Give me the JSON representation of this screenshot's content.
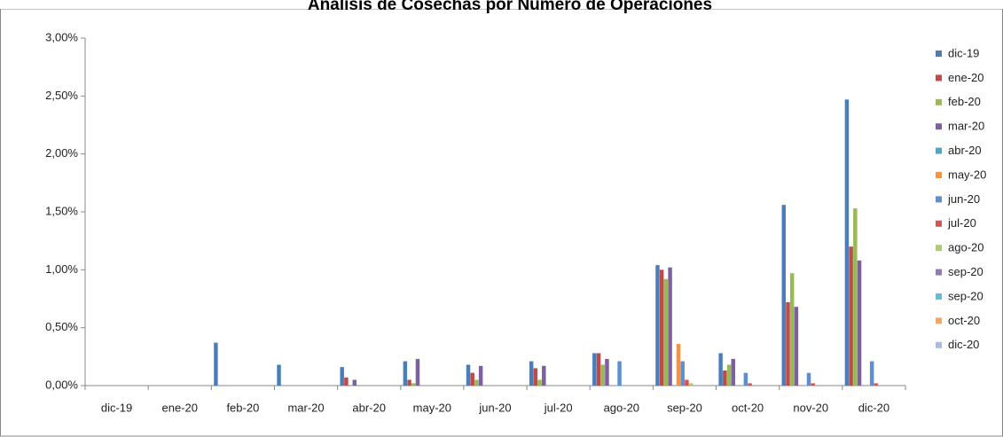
{
  "chart_data": {
    "type": "bar",
    "title": "Análisis de Cosechas por Número de Operaciones",
    "categories": [
      "dic-19",
      "ene-20",
      "feb-20",
      "mar-20",
      "abr-20",
      "may-20",
      "jun-20",
      "jul-20",
      "ago-20",
      "sep-20",
      "oct-20",
      "nov-20",
      "dic-20"
    ],
    "series": [
      {
        "name": "dic-19",
        "color": "#4A7EBB",
        "values": [
          null,
          null,
          0.37,
          0.18,
          0.16,
          0.21,
          0.18,
          0.21,
          0.28,
          1.04,
          0.28,
          1.56,
          2.47
        ]
      },
      {
        "name": "ene-20",
        "color": "#BE4B48",
        "values": [
          null,
          null,
          null,
          null,
          0.07,
          0.05,
          0.11,
          0.15,
          0.28,
          1.0,
          0.13,
          0.72,
          1.2
        ]
      },
      {
        "name": "feb-20",
        "color": "#98B954",
        "values": [
          null,
          null,
          null,
          null,
          null,
          0.02,
          0.05,
          0.05,
          0.18,
          0.92,
          0.18,
          0.97,
          1.53
        ]
      },
      {
        "name": "mar-20",
        "color": "#7D60A0",
        "values": [
          null,
          null,
          null,
          null,
          0.05,
          0.23,
          0.17,
          0.17,
          0.23,
          1.02,
          0.23,
          0.68,
          1.08
        ]
      },
      {
        "name": "abr-20",
        "color": "#46AAC5",
        "values": [
          null,
          null,
          null,
          null,
          null,
          null,
          null,
          null,
          null,
          null,
          null,
          null,
          null
        ]
      },
      {
        "name": "may-20",
        "color": "#F69240",
        "values": [
          null,
          null,
          null,
          null,
          null,
          null,
          null,
          null,
          null,
          0.36,
          null,
          null,
          null
        ]
      },
      {
        "name": "jun-20",
        "color": "#5B8FD0",
        "values": [
          null,
          null,
          null,
          null,
          null,
          null,
          null,
          null,
          0.21,
          0.21,
          0.11,
          0.11,
          0.21
        ]
      },
      {
        "name": "jul-20",
        "color": "#D6544F",
        "values": [
          null,
          null,
          null,
          null,
          null,
          null,
          null,
          null,
          null,
          0.05,
          0.02,
          0.02,
          0.02
        ]
      },
      {
        "name": "ago-20",
        "color": "#AECB6E",
        "values": [
          null,
          null,
          null,
          null,
          null,
          null,
          null,
          null,
          null,
          0.02,
          null,
          null,
          null
        ]
      },
      {
        "name": "sep-20",
        "color": "#9079B5",
        "values": [
          null,
          null,
          null,
          null,
          null,
          null,
          null,
          null,
          null,
          null,
          null,
          null,
          null
        ]
      },
      {
        "name": "sep-20",
        "color": "#5BC0DE",
        "values": [
          null,
          null,
          null,
          null,
          null,
          null,
          null,
          null,
          null,
          null,
          null,
          null,
          null
        ]
      },
      {
        "name": "oct-20",
        "color": "#F9A55E",
        "values": [
          null,
          null,
          null,
          null,
          null,
          null,
          null,
          null,
          null,
          null,
          null,
          null,
          null
        ]
      },
      {
        "name": "dic-20",
        "color": "#A9BCE0",
        "values": [
          null,
          null,
          null,
          null,
          null,
          null,
          null,
          null,
          null,
          null,
          null,
          null,
          null
        ]
      }
    ],
    "ylim": [
      0,
      3
    ],
    "yticks": [
      {
        "value": 0,
        "label": "0,00%"
      },
      {
        "value": 0.5,
        "label": "0,50%"
      },
      {
        "value": 1,
        "label": "1,00%"
      },
      {
        "value": 1.5,
        "label": "1,50%"
      },
      {
        "value": 2,
        "label": "2,00%"
      },
      {
        "value": 2.5,
        "label": "2,50%"
      },
      {
        "value": 3,
        "label": "3,00%"
      }
    ],
    "grid": false,
    "legend": "right"
  }
}
